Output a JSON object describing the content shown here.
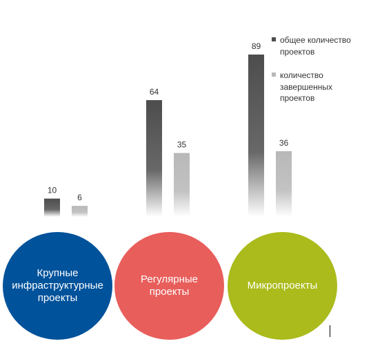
{
  "chart_data": {
    "type": "bar",
    "categories": [
      "Крупные\nинфраструктурные\nпроекты",
      "Регулярные\nпроекты",
      "Микропроекты"
    ],
    "series": [
      {
        "name": "общее количество проектов",
        "values": [
          10,
          64,
          89
        ],
        "color": "#4d4d4d"
      },
      {
        "name": "количество завершенных проектов",
        "values": [
          6,
          35,
          36
        ],
        "color": "#b8b8b8"
      }
    ],
    "category_colors": [
      "#00529b",
      "#e85e5b",
      "#aabb1b"
    ],
    "ylim": [
      0,
      89
    ],
    "legend_position": "top-right",
    "grid": false
  },
  "ui": {
    "text_cursor": "vertical-bar"
  }
}
